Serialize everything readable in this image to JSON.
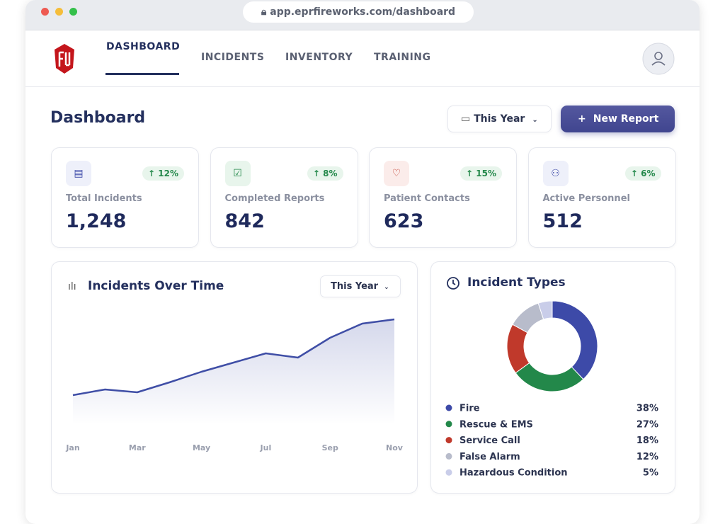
{
  "browser": {
    "url": "app.eprfireworks.com/dashboard"
  },
  "nav": {
    "tabs": [
      "DASHBOARD",
      "INCIDENTS",
      "INVENTORY",
      "TRAINING"
    ]
  },
  "header": {
    "title": "Dashboard",
    "filter": "This Year",
    "button": "New Report"
  },
  "kpis": [
    {
      "label": "Total Incidents",
      "value": "1,248",
      "change": "↑ 12%"
    },
    {
      "label": "Completed Reports",
      "value": "842",
      "change": "↑ 8%"
    },
    {
      "label": "Patient Contacts",
      "value": "623",
      "change": "↑ 15%"
    },
    {
      "label": "Active Personnel",
      "value": "512",
      "change": "↑ 6%"
    }
  ],
  "chart_data": [
    {
      "type": "line",
      "title": "Incidents Over Time",
      "filter": "This Year",
      "categories": [
        "Jan",
        null,
        "Mar",
        null,
        "May",
        null,
        "Jul",
        null,
        "Sep",
        null,
        "Nov"
      ],
      "values": [
        42,
        50,
        46,
        60,
        75,
        88,
        101,
        95,
        123,
        143,
        149
      ],
      "ylim": [
        0,
        160
      ],
      "color": "#3f4ea6"
    },
    {
      "type": "pie",
      "title": "Incident Types",
      "categories": [
        "Fire",
        "Rescue & EMS",
        "Service Call",
        "False Alarm",
        "Hazardous Condition"
      ],
      "values": [
        38,
        27,
        18,
        12,
        5
      ],
      "value_labels": [
        "38%",
        "27%",
        "18%",
        "12%",
        "5%"
      ],
      "colors": [
        "#3d4aa8",
        "#23884a",
        "#c0392b",
        "#b8bccb",
        "#c9cde9"
      ]
    }
  ]
}
